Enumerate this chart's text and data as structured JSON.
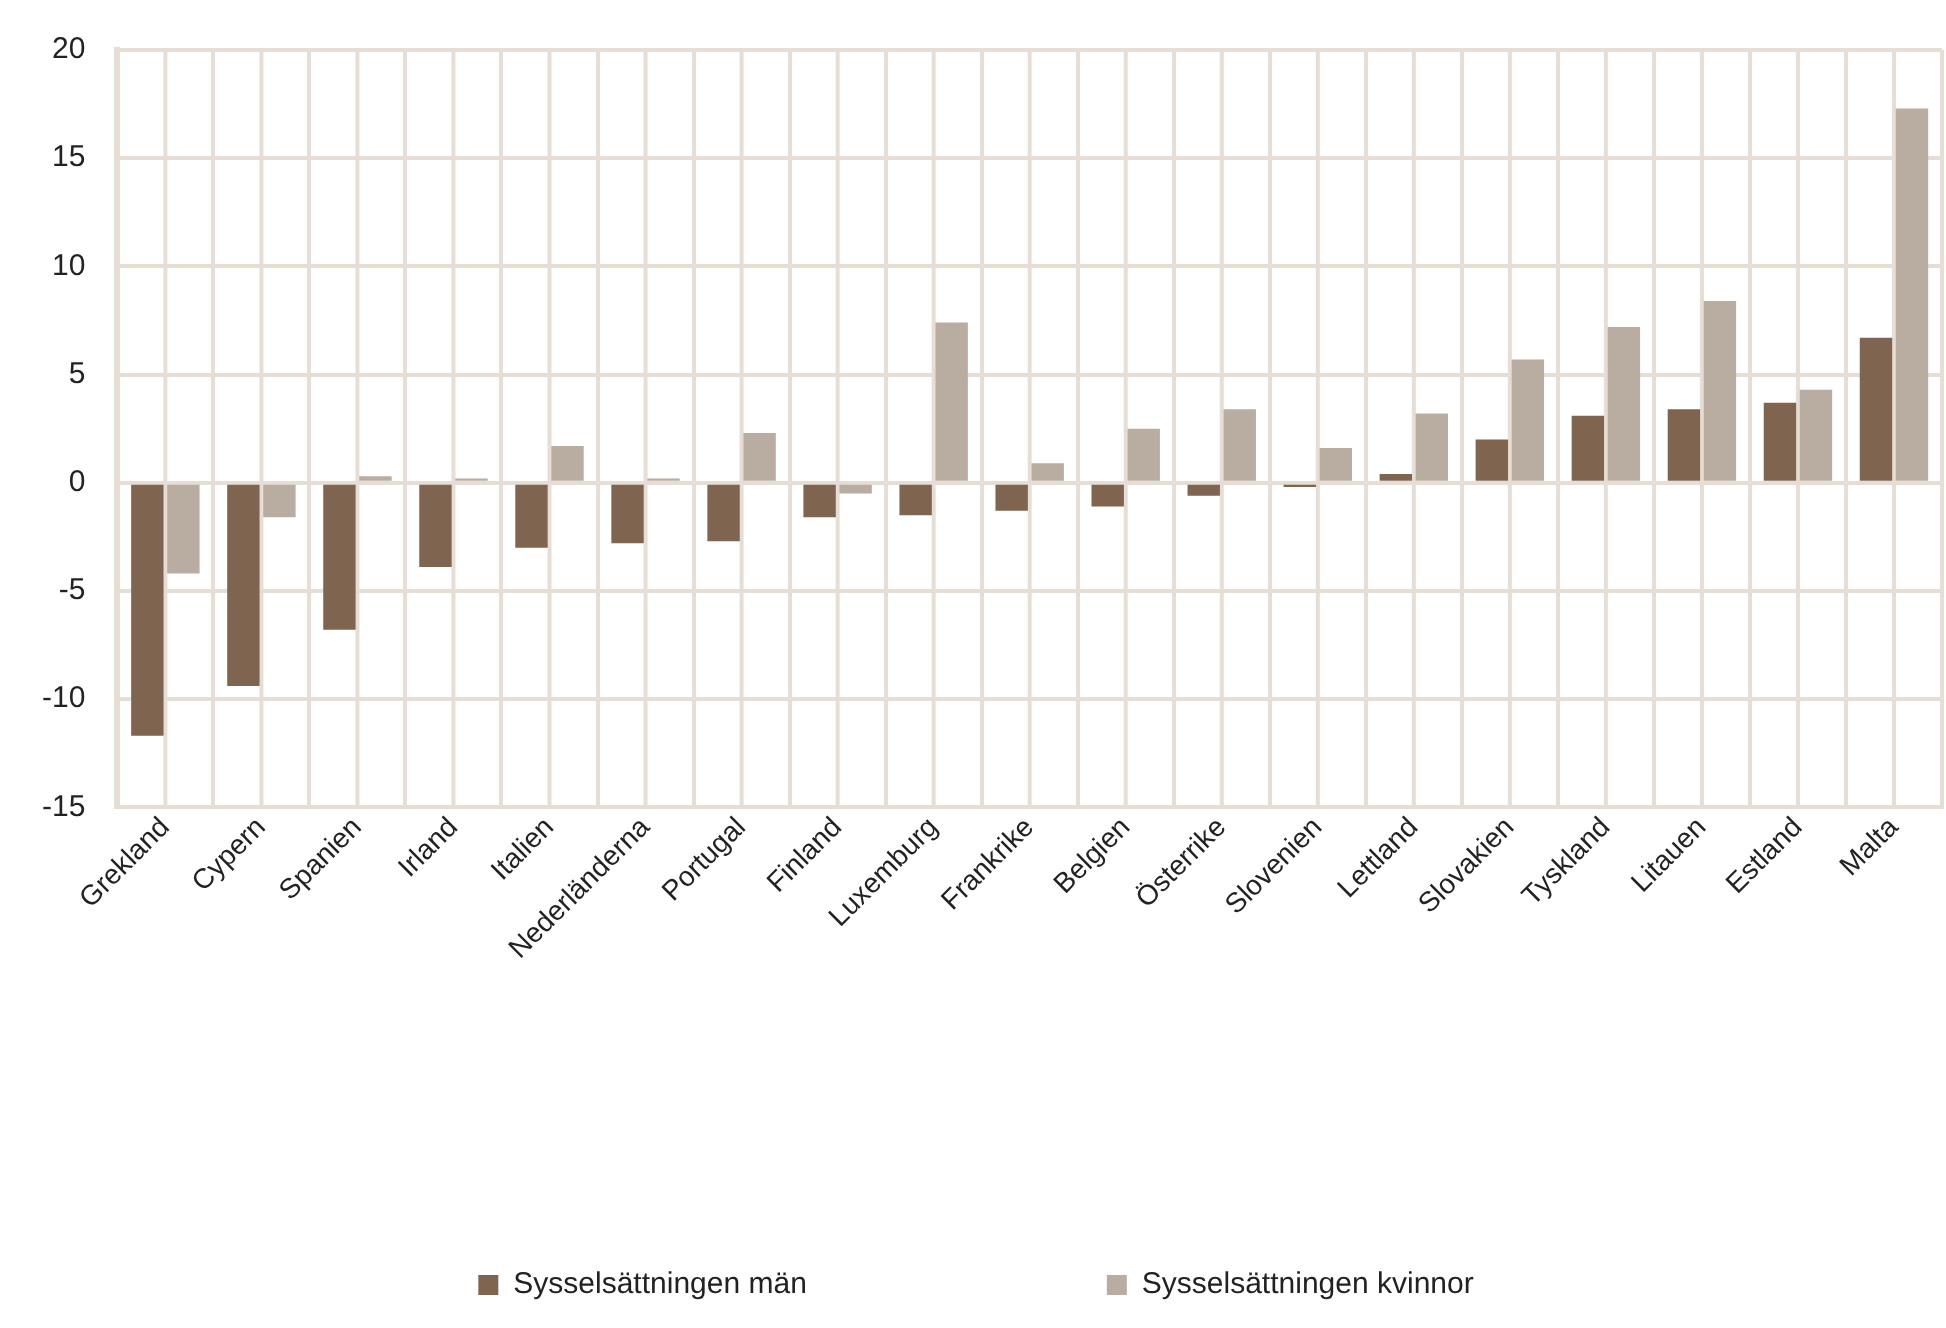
{
  "chart_data": {
    "type": "bar",
    "categories": [
      "Grekland",
      "Cypern",
      "Spanien",
      "Irland",
      "Italien",
      "Nederländerna",
      "Portugal",
      "Finland",
      "Luxemburg",
      "Frankrike",
      "Belgien",
      "Österrike",
      "Slovenien",
      "Lettland",
      "Slovakien",
      "Tyskland",
      "Litauen",
      "Estland",
      "Malta"
    ],
    "series": [
      {
        "name": "Sysselsättningen män",
        "color": "#7f6450",
        "values": [
          -11.7,
          -9.4,
          -6.8,
          -3.9,
          -3.0,
          -2.8,
          -2.7,
          -1.6,
          -1.5,
          -1.3,
          -1.1,
          -0.6,
          -0.2,
          0.4,
          2.0,
          3.1,
          3.4,
          3.7,
          6.7
        ]
      },
      {
        "name": "Sysselsättningen kvinnor",
        "color": "#b9aca0",
        "values": [
          -4.2,
          -1.6,
          0.3,
          0.2,
          1.7,
          0.2,
          2.3,
          -0.5,
          7.4,
          0.9,
          2.5,
          3.4,
          1.6,
          3.2,
          5.7,
          7.2,
          8.4,
          4.3,
          17.3
        ]
      }
    ],
    "ylim": [
      -15,
      20
    ],
    "yticks": [
      -15,
      -10,
      -5,
      0,
      5,
      10,
      15,
      20
    ],
    "grid": true,
    "legend": "bottom"
  }
}
